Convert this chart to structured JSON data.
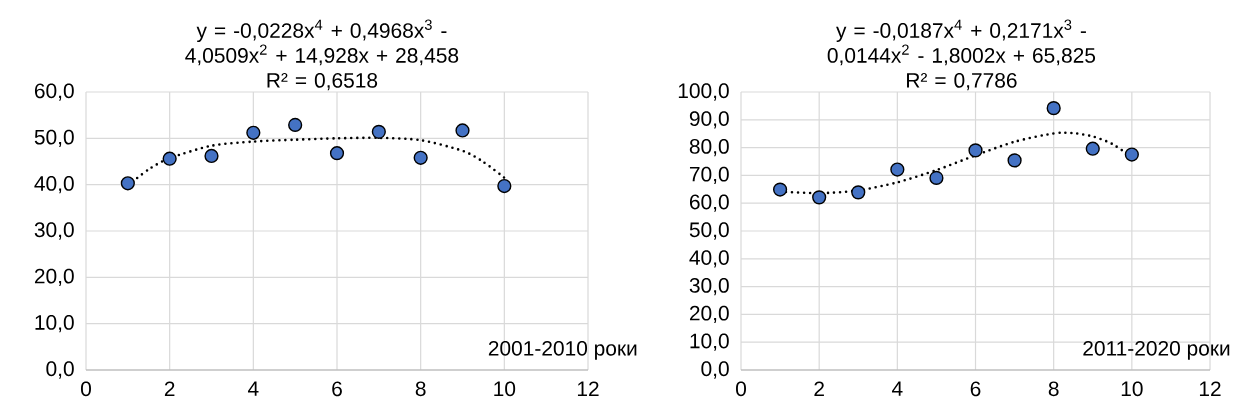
{
  "chart_data": [
    {
      "type": "scatter",
      "xlim": [
        0,
        12
      ],
      "xticks": [
        0,
        2,
        4,
        6,
        8,
        10,
        12
      ],
      "ylim": [
        0,
        60
      ],
      "yticks": [
        {
          "value": 0,
          "label": "0,0"
        },
        {
          "value": 10,
          "label": "10,0"
        },
        {
          "value": 20,
          "label": "20,0"
        },
        {
          "value": 30,
          "label": "30,0"
        },
        {
          "value": 40,
          "label": "40,0"
        },
        {
          "value": 50,
          "label": "50,0"
        },
        {
          "value": 60,
          "label": "60,0"
        }
      ],
      "grid": true,
      "annotations": [
        "y = -0,0228x$^{4}$ + 0,4968x$^{3}$ - 4,0509x$^{2}$ + 14,928x + 28,458",
        "R² = 0,6518",
        "2001-2010 роки"
      ],
      "series": [
        {
          "color": "#4472c4",
          "marker": "circle",
          "x": [
            1,
            2,
            3,
            4,
            5,
            6,
            7,
            8,
            9,
            10
          ],
          "values": [
            40.3,
            45.6,
            46.2,
            51.2,
            52.9,
            46.8,
            51.4,
            45.8,
            51.7,
            39.7
          ]
        },
        {
          "type": "line",
          "color": "#000000",
          "marker": "none",
          "line_style": "dotted",
          "x": [
            1,
            1.5,
            2,
            3,
            4,
            5,
            6,
            7,
            8,
            9,
            9.5,
            10
          ],
          "values": [
            39.8,
            43.3,
            45.7,
            48.4,
            49.3,
            49.7,
            50.0,
            50.1,
            49.6,
            47.3,
            44.9,
            41.5
          ]
        }
      ]
    },
    {
      "type": "scatter",
      "xlim": [
        0,
        12
      ],
      "xticks": [
        0,
        2,
        4,
        6,
        8,
        10,
        12
      ],
      "ylim": [
        0,
        100
      ],
      "yticks": [
        {
          "value": 0,
          "label": "0,0"
        },
        {
          "value": 10,
          "label": "10,0"
        },
        {
          "value": 20,
          "label": "20,0"
        },
        {
          "value": 30,
          "label": "30,0"
        },
        {
          "value": 40,
          "label": "40,0"
        },
        {
          "value": 50,
          "label": "50,0"
        },
        {
          "value": 60,
          "label": "60,0"
        },
        {
          "value": 70,
          "label": "70,0"
        },
        {
          "value": 80,
          "label": "80,0"
        },
        {
          "value": 90,
          "label": "90,0"
        },
        {
          "value": 100,
          "label": "100,0"
        }
      ],
      "grid": true,
      "annotations": [
        "y = -0,0187x$^{4}$ + 0,2171x$^{3}$ - 0,0144x$^{2}$ - 1,8002x + 65,825",
        "R² = 0,7786",
        "2011-2020 роки"
      ],
      "series": [
        {
          "color": "#4472c4",
          "marker": "circle",
          "x": [
            1,
            2,
            3,
            4,
            5,
            6,
            7,
            8,
            9,
            10
          ],
          "values": [
            64.9,
            62.1,
            63.9,
            72.1,
            69.1,
            79.0,
            75.4,
            94.2,
            79.6,
            77.5
          ]
        },
        {
          "type": "line",
          "color": "#000000",
          "marker": "none",
          "line_style": "dotted",
          "x": [
            1,
            2,
            3,
            4,
            5,
            6,
            7,
            8,
            8.5,
            9,
            9.5,
            10
          ],
          "values": [
            64.2,
            63.6,
            64.6,
            67.5,
            71.9,
            77.2,
            82.1,
            85.1,
            85.2,
            84.0,
            81.3,
            76.5
          ]
        }
      ]
    }
  ]
}
